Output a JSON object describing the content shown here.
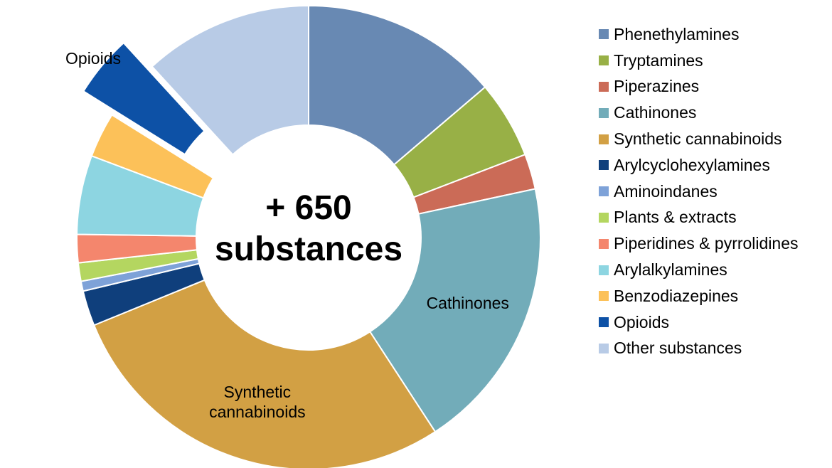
{
  "chart_data": {
    "type": "pie",
    "donut": true,
    "center_label": [
      "+ 650",
      "substances"
    ],
    "legend_position": "right",
    "categories": [
      "Phenethylamines",
      "Tryptamines",
      "Piperazines",
      "Cathinones",
      "Synthetic cannabinoids",
      "Arylcyclohexylamines",
      "Aminoindanes",
      "Plants & extracts",
      "Piperidines & pyrrolidines",
      "Arylalkylamines",
      "Benzodiazepines",
      "Opioids",
      "Other substances"
    ],
    "values": [
      14,
      5.5,
      2.5,
      19.5,
      28.5,
      2.5,
      0.7,
      1.3,
      2,
      5.6,
      3.2,
      4.4,
      12
    ],
    "colors": [
      "#6889b3",
      "#98b046",
      "#cb6b57",
      "#72acb9",
      "#d2a044",
      "#0f3f7c",
      "#7ea2d8",
      "#b4d660",
      "#f4866d",
      "#8dd5e1",
      "#fcc159",
      "#0d51a6",
      "#b8cbe6"
    ],
    "exploded": [
      "Opioids"
    ],
    "slice_labels": [
      {
        "category": "Cathinones",
        "lines": [
          "Cathinones"
        ]
      },
      {
        "category": "Synthetic cannabinoids",
        "lines": [
          "Synthetic",
          "cannabinoids"
        ]
      },
      {
        "category": "Opioids",
        "lines": [
          "Opioids"
        ]
      }
    ]
  }
}
